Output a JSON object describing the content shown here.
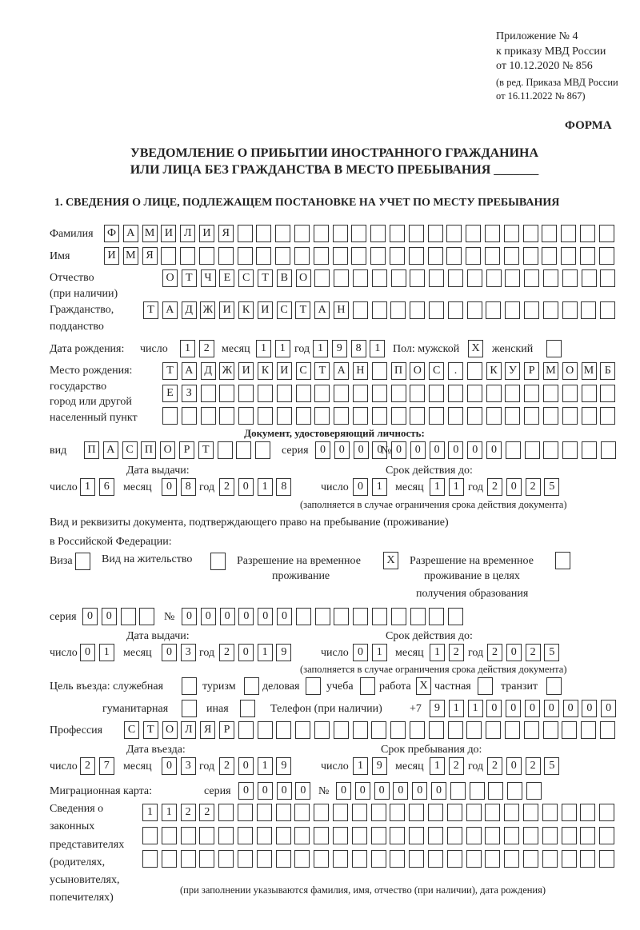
{
  "header": {
    "appendix": "Приложение № 4",
    "order": "к приказу МВД России",
    "order_date": "от 10.12.2020 № 856",
    "revision1": "(в ред. Приказа МВД России",
    "revision2": "от 16.11.2022 № 867)",
    "form_label": "ФОРМА",
    "title1": "УВЕДОМЛЕНИЕ О ПРИБЫТИИ ИНОСТРАННОГО ГРАЖДАНИНА",
    "title2": "ИЛИ ЛИЦА БЕЗ ГРАЖДАНСТВА В МЕСТО ПРЕБЫВАНИЯ _______",
    "section1": "1. СВЕДЕНИЯ О ЛИЦЕ, ПОДЛЕЖАЩЕМ ПОСТАНОВКЕ НА УЧЕТ ПО МЕСТУ ПРЕБЫВАНИЯ"
  },
  "labels": {
    "surname": "Фамилия",
    "name": "Имя",
    "patronymic1": "Отчество",
    "patronymic2": "(при наличии)",
    "citizenship1": "Гражданство,",
    "citizenship2": "подданство",
    "birth_date": "Дата рождения:",
    "day": "число",
    "month": "месяц",
    "year": "год",
    "sex": "Пол: мужской",
    "female": "женский",
    "birthplace1": "Место рождения:",
    "birthplace2": "государство",
    "birthplace3": "город или другой",
    "birthplace4": "населенный пункт",
    "id_doc": "Документ, удостоверяющий личность:",
    "kind": "вид",
    "series": "серия",
    "number": "№",
    "issue_date": "Дата выдачи:",
    "valid_until": "Срок действия до:",
    "valid_note": "(заполняется в случае ограничения срока действия документа)",
    "stay_doc1": "Вид и реквизиты документа, подтверждающего право на пребывание (проживание)",
    "stay_doc2": "в Российской Федерации:",
    "visa": "Виза",
    "residence": "Вид на жительство",
    "trp1": "Разрешение на временное",
    "trp2": "проживание",
    "trpe1": "Разрешение на временное",
    "trpe2": "проживание в целях",
    "trpe3": "получения образования",
    "purpose": "Цель въезда: служебная",
    "tourism": "туризм",
    "business": "деловая",
    "study": "учеба",
    "work": "работа",
    "private": "частная",
    "transit": "транзит",
    "humanitarian": "гуманитарная",
    "other": "иная",
    "phone": "Телефон (при наличии)",
    "phone_prefix": "+7",
    "profession": "Профессия",
    "entry_date": "Дата въезда:",
    "stay_until": "Срок пребывания до:",
    "migration_card": "Миграционная карта:",
    "reps1": "Сведения о",
    "reps2": "законных",
    "reps3": "представителях",
    "reps4": "(родителях,",
    "reps5": "усыновителях,",
    "reps6": "попечителях)",
    "reps_note": "(при заполнении указываются фамилия, имя, отчество (при наличии), дата рождения)"
  },
  "person": {
    "surname": "ФАМИЛИЯ",
    "name": "ИМЯ",
    "patronymic": "ОТЧЕСТВО",
    "citizenship": "ТАДЖИКИСТАН",
    "birth": {
      "day": "12",
      "month": "11",
      "year": "1981"
    },
    "sex_male": "X",
    "sex_female": "",
    "birthplace": [
      "ТАДЖИКИСТАН ПОС. КУРМОМБ",
      "ЕЗ",
      ""
    ]
  },
  "id_document": {
    "kind": "ПАСПОРТ",
    "series": "0000",
    "number": "000000",
    "issue": {
      "day": "16",
      "month": "08",
      "year": "2018"
    },
    "valid": {
      "day": "01",
      "month": "11",
      "year": "2025"
    }
  },
  "stay_document": {
    "visa": "",
    "residence": "",
    "trp": "X",
    "trp_education": "",
    "series": "00",
    "number": "000000",
    "issue": {
      "day": "01",
      "month": "03",
      "year": "2019"
    },
    "valid": {
      "day": "01",
      "month": "12",
      "year": "2025"
    }
  },
  "purpose": {
    "official": "",
    "tourism": "",
    "business": "",
    "study": "",
    "work": "X",
    "private": "",
    "transit": "",
    "humanitarian": "",
    "other": ""
  },
  "phone": "9110000000",
  "profession": "СТОЛЯР",
  "entry": {
    "day": "27",
    "month": "03",
    "year": "2019"
  },
  "stay_until": {
    "day": "19",
    "month": "12",
    "year": "2025"
  },
  "migration_card": {
    "series": "0000",
    "number": "000000"
  },
  "representatives": [
    "1122",
    "",
    ""
  ]
}
